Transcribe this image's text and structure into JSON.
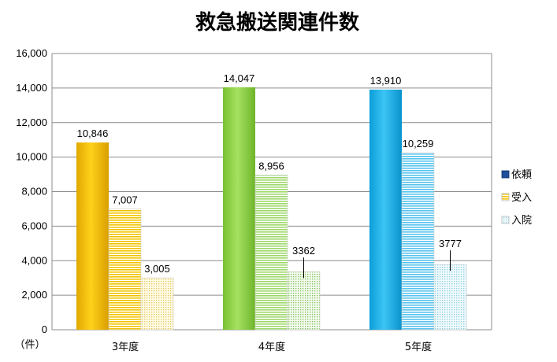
{
  "chart_data": {
    "type": "bar",
    "title": "救急搬送関連件数",
    "unit_label": "（件）",
    "categories": [
      "3年度",
      "4年度",
      "5年度"
    ],
    "ylim": [
      0,
      16000
    ],
    "yticks": [
      "0",
      "2,000",
      "4,000",
      "6,000",
      "8,000",
      "10,000",
      "12,000",
      "14,000",
      "16,000"
    ],
    "ytick_values": [
      0,
      2000,
      4000,
      6000,
      8000,
      10000,
      12000,
      14000,
      16000
    ],
    "grid": true,
    "legend_position": "right",
    "series": [
      {
        "name": "依頼",
        "values": [
          10846,
          14047,
          13910
        ],
        "labels": [
          "10,846",
          "14,047",
          "13,910"
        ]
      },
      {
        "name": "受入",
        "values": [
          7007,
          8956,
          10259
        ],
        "labels": [
          "7,007",
          "8,956",
          "10,259"
        ]
      },
      {
        "name": "入院",
        "values": [
          3005,
          3362,
          3777
        ],
        "labels": [
          "3,005",
          "3362",
          "3777"
        ]
      }
    ],
    "colors": {
      "year_main": [
        "#f5c000",
        "#8fd44a",
        "#1aaee8"
      ],
      "legend": [
        "#1f4e9a",
        "#e6c200",
        "#cfe9ee"
      ]
    }
  }
}
